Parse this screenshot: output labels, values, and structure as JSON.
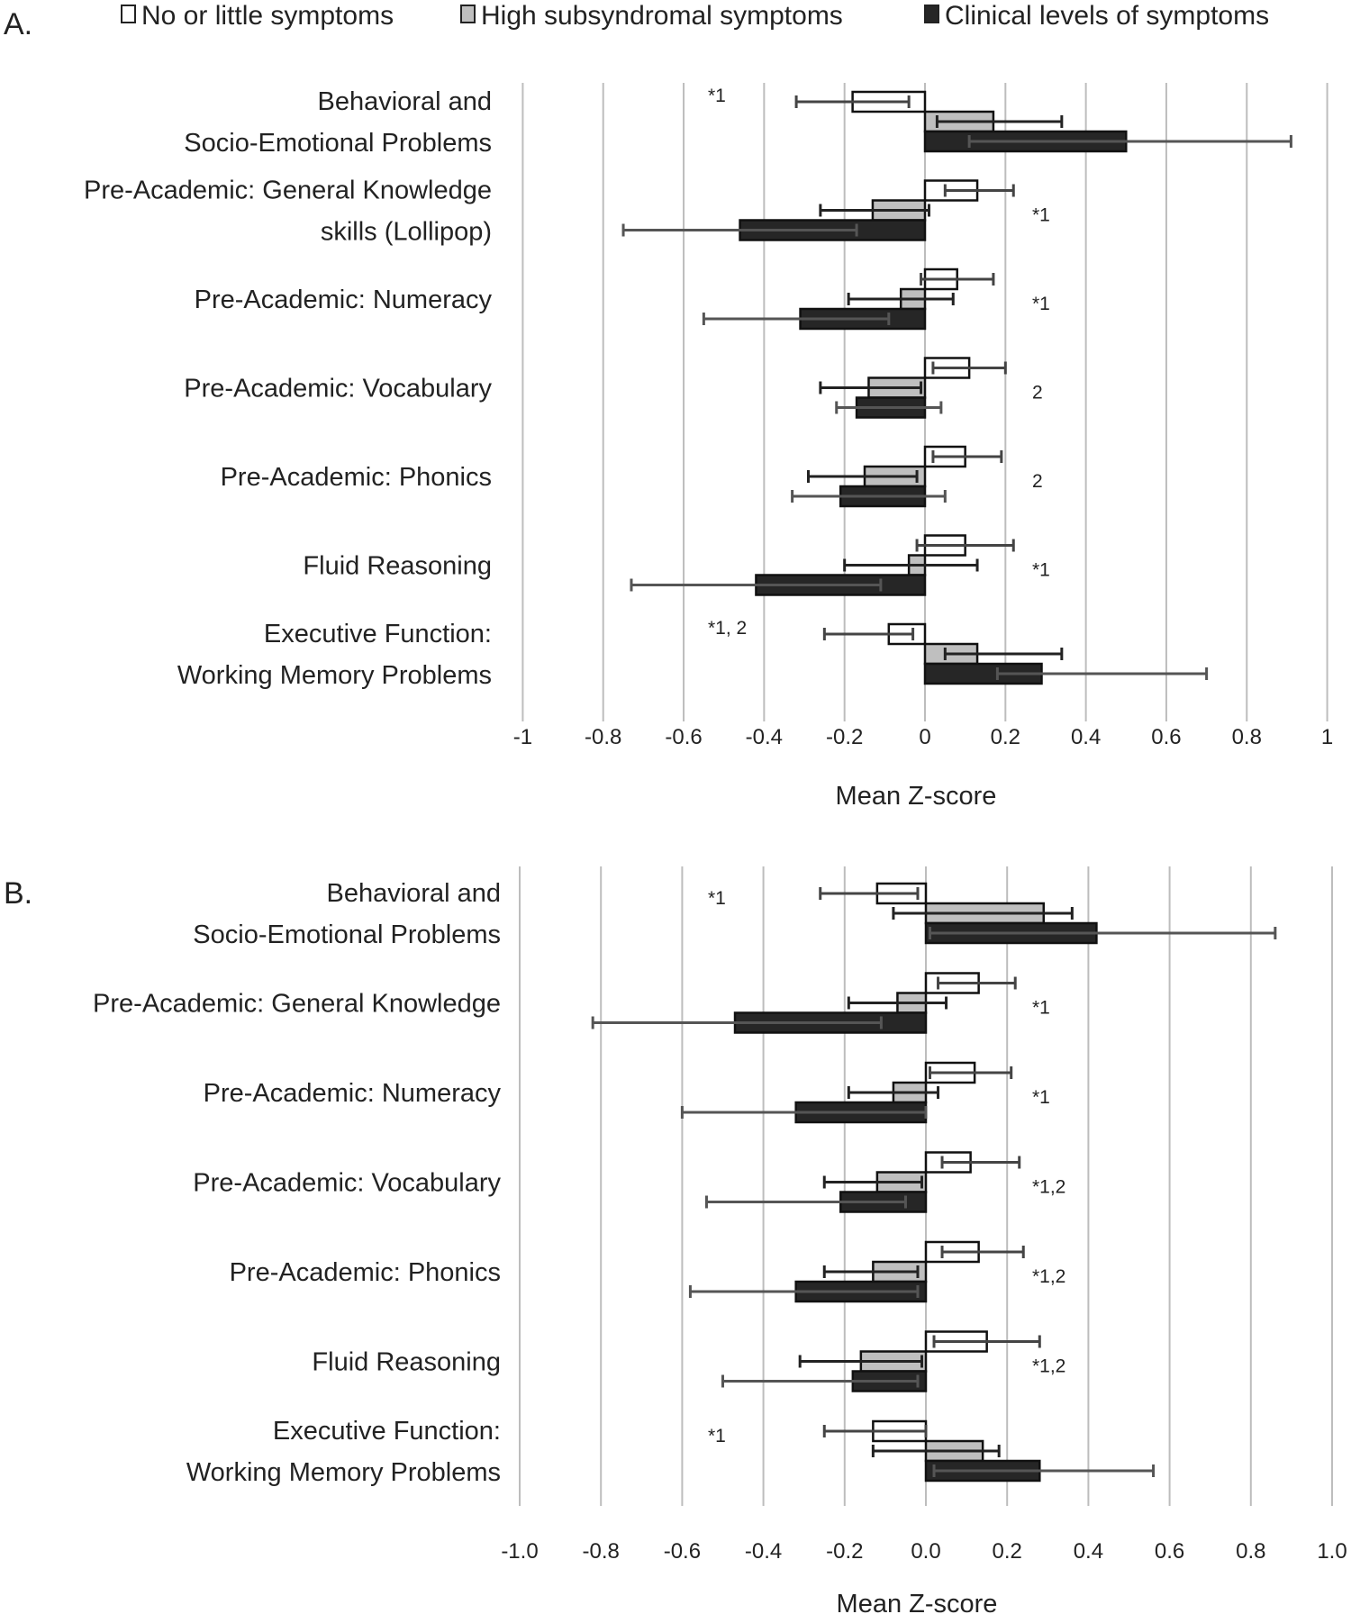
{
  "legend": {
    "items": [
      {
        "label": "No or little symptoms",
        "color": "#ffffff"
      },
      {
        "label": "High subsyndromal symptoms",
        "color": "#bfbfbf"
      },
      {
        "label": "Clinical levels of symptoms",
        "color": "#262626"
      }
    ],
    "placement": "top"
  },
  "chart_data": [
    {
      "type": "bar",
      "orientation": "horizontal",
      "panel_label": "A.",
      "xlabel": "Mean Z-score",
      "xlim": [
        -1,
        1
      ],
      "ticks": [
        "-1",
        "-0.8",
        "-0.6",
        "-0.4",
        "-0.2",
        "0",
        "0.2",
        "0.4",
        "0.6",
        "0.8",
        "1"
      ],
      "grid": true,
      "categories": [
        [
          "Behavioral and",
          "Socio-Emotional Problems"
        ],
        [
          "Pre-Academic: General Knowledge",
          "skills (Lollipop)"
        ],
        [
          "Pre-Academic: Numeracy"
        ],
        [
          "Pre-Academic: Vocabulary"
        ],
        [
          "Pre-Academic: Phonics"
        ],
        [
          "Fluid Reasoning"
        ],
        [
          "Executive Function:",
          "Working Memory Problems"
        ]
      ],
      "annotations": [
        "*1",
        "*1",
        "*1",
        "2",
        "2",
        "*1",
        "*1, 2"
      ],
      "series": [
        {
          "name": "No or little symptoms",
          "values": [
            -0.18,
            0.13,
            0.08,
            0.11,
            0.1,
            0.1,
            -0.09
          ],
          "errors": [
            [
              -0.32,
              -0.04
            ],
            [
              0.05,
              0.22
            ],
            [
              -0.01,
              0.17
            ],
            [
              0.02,
              0.2
            ],
            [
              0.02,
              0.19
            ],
            [
              -0.02,
              0.22
            ],
            [
              -0.25,
              -0.03
            ]
          ]
        },
        {
          "name": "High subsyndromal symptoms",
          "values": [
            0.17,
            -0.13,
            -0.06,
            -0.14,
            -0.15,
            -0.04,
            0.13
          ],
          "errors": [
            [
              0.03,
              0.34
            ],
            [
              -0.26,
              0.01
            ],
            [
              -0.19,
              0.07
            ],
            [
              -0.26,
              -0.01
            ],
            [
              -0.29,
              -0.02
            ],
            [
              -0.2,
              0.13
            ],
            [
              0.05,
              0.34
            ]
          ]
        },
        {
          "name": "Clinical levels of symptoms",
          "values": [
            0.5,
            -0.46,
            -0.31,
            -0.17,
            -0.21,
            -0.42,
            0.29
          ],
          "errors": [
            [
              0.11,
              0.91
            ],
            [
              -0.75,
              -0.17
            ],
            [
              -0.55,
              -0.09
            ],
            [
              -0.22,
              0.04
            ],
            [
              -0.33,
              0.05
            ],
            [
              -0.73,
              -0.11
            ],
            [
              0.18,
              0.7
            ]
          ]
        }
      ]
    },
    {
      "type": "bar",
      "orientation": "horizontal",
      "panel_label": "B.",
      "xlabel": "Mean Z-score",
      "xlim": [
        -1,
        1
      ],
      "ticks": [
        "-1.0",
        "-0.8",
        "-0.6",
        "-0.4",
        "-0.2",
        "0.0",
        "0.2",
        "0.4",
        "0.6",
        "0.8",
        "1.0"
      ],
      "grid": true,
      "categories": [
        [
          "Behavioral and",
          "Socio-Emotional Problems"
        ],
        [
          "Pre-Academic: General Knowledge"
        ],
        [
          "Pre-Academic: Numeracy"
        ],
        [
          "Pre-Academic: Vocabulary"
        ],
        [
          "Pre-Academic: Phonics"
        ],
        [
          "Fluid Reasoning"
        ],
        [
          "Executive Function:",
          "Working Memory Problems"
        ]
      ],
      "annotations": [
        "*1",
        "*1",
        "*1",
        "*1,2",
        "*1,2",
        "*1,2",
        "*1"
      ],
      "series": [
        {
          "name": "No or little symptoms",
          "values": [
            -0.12,
            0.13,
            0.12,
            0.11,
            0.13,
            0.15,
            -0.13
          ],
          "errors": [
            [
              -0.26,
              -0.02
            ],
            [
              0.03,
              0.22
            ],
            [
              0.01,
              0.21
            ],
            [
              0.04,
              0.23
            ],
            [
              0.04,
              0.24
            ],
            [
              0.02,
              0.28
            ],
            [
              -0.25,
              0.0
            ]
          ]
        },
        {
          "name": "High subsyndromal symptoms",
          "values": [
            0.29,
            -0.07,
            -0.08,
            -0.12,
            -0.13,
            -0.16,
            0.14
          ],
          "errors": [
            [
              -0.08,
              0.36
            ],
            [
              -0.19,
              0.05
            ],
            [
              -0.19,
              0.03
            ],
            [
              -0.25,
              -0.01
            ],
            [
              -0.25,
              -0.02
            ],
            [
              -0.31,
              -0.01
            ],
            [
              -0.13,
              0.18
            ]
          ]
        },
        {
          "name": "Clinical levels of symptoms",
          "values": [
            0.42,
            -0.47,
            -0.32,
            -0.21,
            -0.32,
            -0.18,
            0.28
          ],
          "errors": [
            [
              0.01,
              0.86
            ],
            [
              -0.82,
              -0.11
            ],
            [
              -0.6,
              0.0
            ],
            [
              -0.54,
              -0.05
            ],
            [
              -0.58,
              -0.02
            ],
            [
              -0.5,
              -0.02
            ],
            [
              0.02,
              0.56
            ]
          ]
        }
      ]
    }
  ]
}
